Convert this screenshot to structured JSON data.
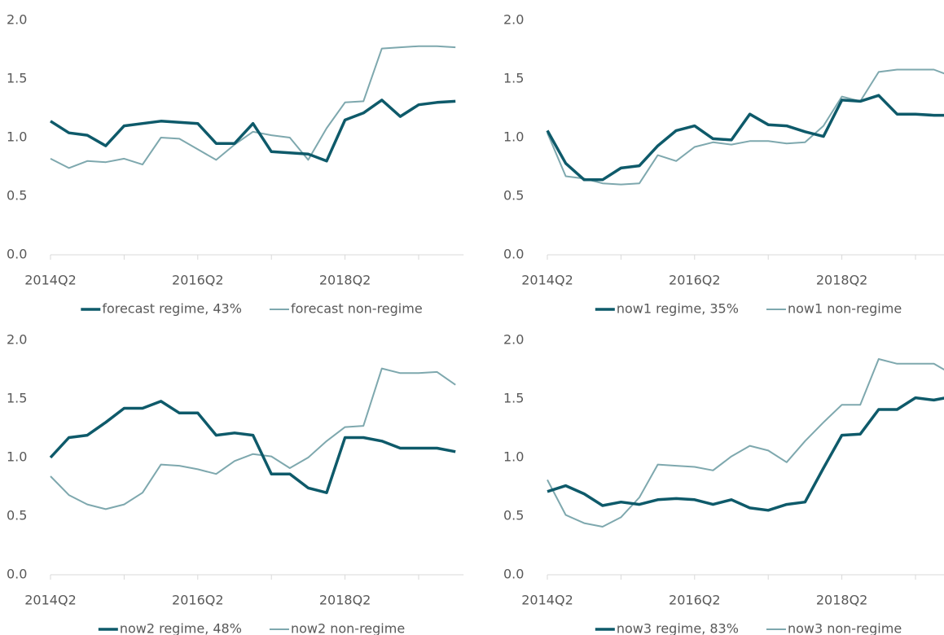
{
  "chart_data": [
    {
      "type": "line",
      "categories": [
        "2014Q2",
        null,
        null,
        null,
        null,
        null,
        null,
        null,
        "2016Q2",
        null,
        null,
        null,
        null,
        null,
        null,
        null,
        "2018Q2",
        null,
        null,
        null,
        null,
        null,
        null
      ],
      "ylim": [
        0,
        2
      ],
      "yticks": [
        {
          "value": 0,
          "label": "0.0"
        },
        {
          "value": 0.5,
          "label": "0.5"
        },
        {
          "value": 1,
          "label": "1.0"
        },
        {
          "value": 1.5,
          "label": "1.5"
        },
        {
          "value": 2,
          "label": "2.0"
        }
      ],
      "series": [
        {
          "name": "forecast regime, 43%",
          "color": "#0e5a6a",
          "values": [
            1.14,
            1.04,
            1.02,
            0.93,
            1.1,
            1.12,
            1.14,
            1.13,
            1.12,
            0.95,
            0.95,
            1.12,
            0.88,
            0.87,
            0.86,
            0.8,
            1.15,
            1.21,
            1.32,
            1.18,
            1.28,
            1.3,
            1.31
          ]
        },
        {
          "name": "forecast non-regime",
          "color": "#7ea8ae",
          "values": [
            0.82,
            0.74,
            0.8,
            0.79,
            0.82,
            0.77,
            1.0,
            0.99,
            0.9,
            0.81,
            0.94,
            1.05,
            1.02,
            1.0,
            0.81,
            1.08,
            1.3,
            1.31,
            1.76,
            1.77,
            1.78,
            1.78,
            1.77
          ]
        }
      ]
    },
    {
      "type": "line",
      "categories": [
        "2014Q2",
        null,
        null,
        null,
        null,
        null,
        null,
        null,
        "2016Q2",
        null,
        null,
        null,
        null,
        null,
        null,
        null,
        "2018Q2",
        null,
        null,
        null,
        null,
        null,
        null
      ],
      "ylim": [
        0,
        2
      ],
      "yticks": [
        {
          "value": 0,
          "label": "0.0"
        },
        {
          "value": 0.5,
          "label": "0.5"
        },
        {
          "value": 1,
          "label": "1.0"
        },
        {
          "value": 1.5,
          "label": "1.5"
        },
        {
          "value": 2,
          "label": "2.0"
        }
      ],
      "series": [
        {
          "name": "now1 regime, 35%",
          "color": "#0e5a6a",
          "values": [
            1.06,
            0.78,
            0.64,
            0.64,
            0.74,
            0.76,
            0.93,
            1.06,
            1.1,
            0.99,
            0.98,
            1.2,
            1.11,
            1.1,
            1.05,
            1.01,
            1.32,
            1.31,
            1.36,
            1.2,
            1.2,
            1.19,
            1.19
          ]
        },
        {
          "name": "now1 non-regime",
          "color": "#7ea8ae",
          "values": [
            1.04,
            0.67,
            0.65,
            0.61,
            0.6,
            0.61,
            0.85,
            0.8,
            0.92,
            0.96,
            0.94,
            0.97,
            0.97,
            0.95,
            0.96,
            1.1,
            1.35,
            1.31,
            1.56,
            1.58,
            1.58,
            1.58,
            1.52
          ]
        }
      ]
    },
    {
      "type": "line",
      "categories": [
        "2014Q2",
        null,
        null,
        null,
        null,
        null,
        null,
        null,
        "2016Q2",
        null,
        null,
        null,
        null,
        null,
        null,
        null,
        "2018Q2",
        null,
        null,
        null,
        null,
        null,
        null
      ],
      "ylim": [
        0,
        2
      ],
      "yticks": [
        {
          "value": 0,
          "label": "0.0"
        },
        {
          "value": 0.5,
          "label": "0.5"
        },
        {
          "value": 1,
          "label": "1.0"
        },
        {
          "value": 1.5,
          "label": "1.5"
        },
        {
          "value": 2,
          "label": "2.0"
        }
      ],
      "series": [
        {
          "name": "now2 regime, 48%",
          "color": "#0e5a6a",
          "values": [
            1.0,
            1.17,
            1.19,
            1.3,
            1.42,
            1.42,
            1.48,
            1.38,
            1.38,
            1.19,
            1.21,
            1.19,
            0.86,
            0.86,
            0.74,
            0.7,
            1.17,
            1.17,
            1.14,
            1.08,
            1.08,
            1.08,
            1.05
          ]
        },
        {
          "name": "now2 non-regime",
          "color": "#7ea8ae",
          "values": [
            0.84,
            0.68,
            0.6,
            0.56,
            0.6,
            0.7,
            0.94,
            0.93,
            0.9,
            0.86,
            0.97,
            1.03,
            1.01,
            0.91,
            1.0,
            1.14,
            1.26,
            1.27,
            1.76,
            1.72,
            1.72,
            1.73,
            1.62
          ]
        }
      ]
    },
    {
      "type": "line",
      "categories": [
        "2014Q2",
        null,
        null,
        null,
        null,
        null,
        null,
        null,
        "2016Q2",
        null,
        null,
        null,
        null,
        null,
        null,
        null,
        "2018Q2",
        null,
        null,
        null,
        null,
        null,
        null
      ],
      "ylim": [
        0,
        2
      ],
      "yticks": [
        {
          "value": 0,
          "label": "0.0"
        },
        {
          "value": 0.5,
          "label": "0.5"
        },
        {
          "value": 1,
          "label": "1.0"
        },
        {
          "value": 1.5,
          "label": "1.5"
        },
        {
          "value": 2,
          "label": "2.0"
        }
      ],
      "series": [
        {
          "name": "now3 regime, 83%",
          "color": "#0e5a6a",
          "values": [
            0.71,
            0.76,
            0.69,
            0.59,
            0.62,
            0.6,
            0.64,
            0.65,
            0.64,
            0.6,
            0.64,
            0.57,
            0.55,
            0.6,
            0.62,
            0.91,
            1.19,
            1.2,
            1.41,
            1.41,
            1.51,
            1.49,
            1.52
          ]
        },
        {
          "name": "now3 non-regime",
          "color": "#7ea8ae",
          "values": [
            0.81,
            0.51,
            0.44,
            0.41,
            0.49,
            0.66,
            0.94,
            0.93,
            0.92,
            0.89,
            1.01,
            1.1,
            1.06,
            0.96,
            1.14,
            1.3,
            1.45,
            1.45,
            1.84,
            1.8,
            1.8,
            1.8,
            1.71
          ]
        }
      ]
    }
  ]
}
